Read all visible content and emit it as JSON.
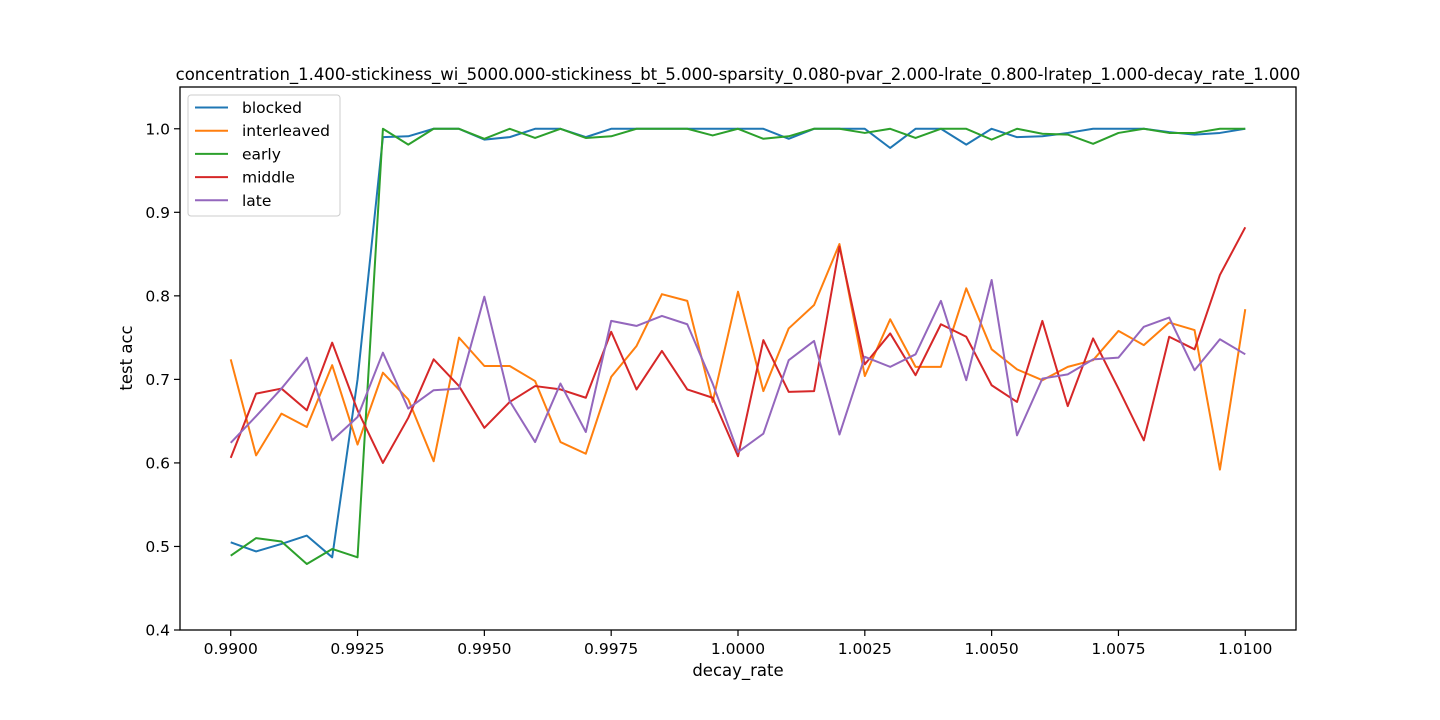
{
  "chart_data": {
    "type": "line",
    "title": "concentration_1.400-stickiness_wi_5000.000-stickiness_bt_5.000-sparsity_0.080-pvar_2.000-lrate_0.800-lratep_1.000-decay_rate_1.000",
    "xlabel": "decay_rate",
    "ylabel": "test acc",
    "xlim": [
      0.989,
      1.011
    ],
    "ylim": [
      0.4,
      1.05
    ],
    "xticks": [
      0.99,
      0.9925,
      0.995,
      0.9975,
      1.0,
      1.0025,
      1.005,
      1.0075,
      1.01
    ],
    "xtick_labels": [
      "0.9900",
      "0.9925",
      "0.9950",
      "0.9975",
      "1.0000",
      "1.0025",
      "1.0050",
      "1.0075",
      "1.0100"
    ],
    "yticks": [
      0.4,
      0.5,
      0.6,
      0.7,
      0.8,
      0.9,
      1.0
    ],
    "ytick_labels": [
      "0.4",
      "0.5",
      "0.6",
      "0.7",
      "0.8",
      "0.9",
      "1.0"
    ],
    "legend_position": "upper-left",
    "x": [
      0.99,
      0.9905,
      0.991,
      0.9915,
      0.992,
      0.9925,
      0.993,
      0.9935,
      0.994,
      0.9945,
      0.995,
      0.9955,
      0.996,
      0.9965,
      0.997,
      0.9975,
      0.998,
      0.9985,
      0.999,
      0.9995,
      1.0,
      1.0005,
      1.001,
      1.0015,
      1.002,
      1.0025,
      1.003,
      1.0035,
      1.004,
      1.0045,
      1.005,
      1.0055,
      1.006,
      1.0065,
      1.007,
      1.0075,
      1.008,
      1.0085,
      1.009,
      1.0095,
      1.01
    ],
    "series": [
      {
        "name": "blocked",
        "color": "#1f77b4",
        "values": [
          0.505,
          0.494,
          0.503,
          0.513,
          0.487,
          0.7,
          0.99,
          0.991,
          1.0,
          1.0,
          0.987,
          0.99,
          1.0,
          1.0,
          0.99,
          1.0,
          1.0,
          1.0,
          1.0,
          1.0,
          1.0,
          1.0,
          0.988,
          1.0,
          1.0,
          1.0,
          0.977,
          1.0,
          1.0,
          0.981,
          1.0,
          0.99,
          0.991,
          0.995,
          1.0,
          1.0,
          1.0,
          0.996,
          0.993,
          0.995,
          1.0
        ]
      },
      {
        "name": "interleaved",
        "color": "#ff7f0e",
        "values": [
          0.724,
          0.609,
          0.659,
          0.643,
          0.717,
          0.622,
          0.708,
          0.676,
          0.602,
          0.75,
          0.716,
          0.716,
          0.698,
          0.625,
          0.611,
          0.703,
          0.74,
          0.802,
          0.794,
          0.673,
          0.805,
          0.686,
          0.761,
          0.789,
          0.862,
          0.704,
          0.772,
          0.715,
          0.715,
          0.809,
          0.736,
          0.712,
          0.699,
          0.715,
          0.723,
          0.758,
          0.741,
          0.768,
          0.759,
          0.592,
          0.784
        ]
      },
      {
        "name": "early",
        "color": "#2ca02c",
        "values": [
          0.489,
          0.51,
          0.506,
          0.479,
          0.497,
          0.487,
          1.0,
          0.981,
          1.0,
          1.0,
          0.988,
          1.0,
          0.989,
          1.0,
          0.989,
          0.991,
          1.0,
          1.0,
          1.0,
          0.992,
          1.0,
          0.988,
          0.991,
          1.0,
          1.0,
          0.995,
          1.0,
          0.989,
          1.0,
          1.0,
          0.987,
          1.0,
          0.994,
          0.993,
          0.982,
          0.995,
          1.0,
          0.995,
          0.995,
          1.0,
          1.0
        ]
      },
      {
        "name": "middle",
        "color": "#d62728",
        "values": [
          0.606,
          0.683,
          0.689,
          0.663,
          0.744,
          0.663,
          0.6,
          0.654,
          0.724,
          0.692,
          0.642,
          0.673,
          0.692,
          0.688,
          0.678,
          0.757,
          0.688,
          0.734,
          0.688,
          0.678,
          0.608,
          0.747,
          0.685,
          0.686,
          0.859,
          0.718,
          0.755,
          0.705,
          0.766,
          0.751,
          0.693,
          0.673,
          0.77,
          0.668,
          0.749,
          0.689,
          0.627,
          0.751,
          0.736,
          0.825,
          0.882
        ]
      },
      {
        "name": "late",
        "color": "#9467bd",
        "values": [
          0.624,
          0.656,
          0.689,
          0.726,
          0.627,
          0.655,
          0.732,
          0.665,
          0.687,
          0.689,
          0.799,
          0.674,
          0.625,
          0.695,
          0.637,
          0.77,
          0.764,
          0.776,
          0.766,
          0.695,
          0.613,
          0.635,
          0.723,
          0.746,
          0.634,
          0.727,
          0.715,
          0.73,
          0.794,
          0.699,
          0.819,
          0.633,
          0.701,
          0.706,
          0.724,
          0.726,
          0.763,
          0.774,
          0.711,
          0.748,
          0.73
        ]
      }
    ]
  }
}
